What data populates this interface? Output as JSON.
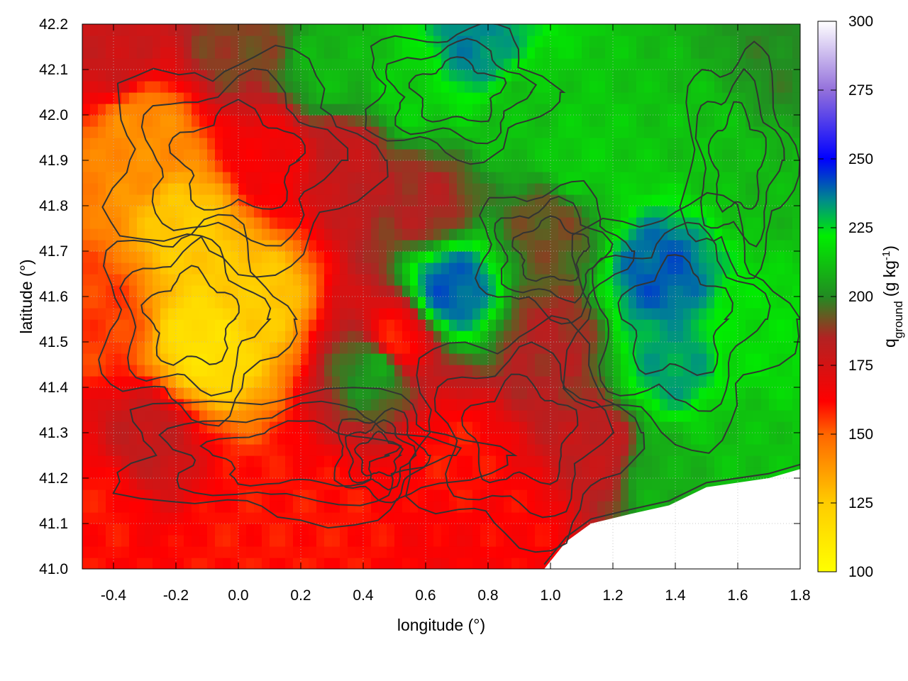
{
  "chart_data": {
    "type": "heatmap",
    "title": "",
    "xlabel": "longitude (°)",
    "ylabel": "latitude (°)",
    "colorbar_label": {
      "base": "q",
      "subscript": "ground",
      "unit_prefix": "(g kg",
      "unit_exponent": "-1",
      "unit_suffix": ")"
    },
    "xlim": [
      -0.5,
      1.8
    ],
    "ylim": [
      41.0,
      42.2
    ],
    "x_ticks": [
      "-0.4",
      "-0.2",
      "0.0",
      "0.2",
      "0.4",
      "0.6",
      "0.8",
      "1.0",
      "1.2",
      "1.4",
      "1.6",
      "1.8"
    ],
    "y_ticks": [
      "41.0",
      "41.1",
      "41.2",
      "41.3",
      "41.4",
      "41.5",
      "41.6",
      "41.7",
      "41.8",
      "41.9",
      "42.0",
      "42.1",
      "42.2"
    ],
    "colorbar_range": [
      100,
      300
    ],
    "colorbar_ticks": [
      "100",
      "125",
      "150",
      "175",
      "200",
      "225",
      "250",
      "275",
      "300"
    ],
    "colormap": [
      {
        "value": 100,
        "color": "#ffff00"
      },
      {
        "value": 125,
        "color": "#ffcc00"
      },
      {
        "value": 150,
        "color": "#ff6600"
      },
      {
        "value": 162,
        "color": "#ff0000"
      },
      {
        "value": 185,
        "color": "#b22222"
      },
      {
        "value": 200,
        "color": "#228b22"
      },
      {
        "value": 222,
        "color": "#00ee00"
      },
      {
        "value": 235,
        "color": "#008b8b"
      },
      {
        "value": 250,
        "color": "#0000ff"
      },
      {
        "value": 275,
        "color": "#9370db"
      },
      {
        "value": 300,
        "color": "#ffffff"
      }
    ],
    "grid": true,
    "contours": true,
    "contour_color": "#333333",
    "missing_color": "#ffffff",
    "field_anchors": [
      {
        "lon": -0.3,
        "lat": 41.95,
        "q": 140
      },
      {
        "lon": -0.15,
        "lat": 41.75,
        "q": 125
      },
      {
        "lon": -0.1,
        "lat": 41.5,
        "q": 115
      },
      {
        "lon": 0.05,
        "lat": 41.6,
        "q": 125
      },
      {
        "lon": -0.45,
        "lat": 41.55,
        "q": 155
      },
      {
        "lon": 0.1,
        "lat": 41.9,
        "q": 165
      },
      {
        "lon": -0.45,
        "lat": 41.15,
        "q": 160
      },
      {
        "lon": 0.0,
        "lat": 41.05,
        "q": 160
      },
      {
        "lon": 0.3,
        "lat": 41.1,
        "q": 160
      },
      {
        "lon": 0.7,
        "lat": 41.25,
        "q": 160
      },
      {
        "lon": 0.9,
        "lat": 41.1,
        "q": 162
      },
      {
        "lon": 0.5,
        "lat": 41.5,
        "q": 158
      },
      {
        "lon": -0.4,
        "lat": 42.15,
        "q": 178
      },
      {
        "lon": 0.0,
        "lat": 42.15,
        "q": 190
      },
      {
        "lon": 0.35,
        "lat": 41.9,
        "q": 180
      },
      {
        "lon": 0.6,
        "lat": 41.8,
        "q": 185
      },
      {
        "lon": 1.0,
        "lat": 41.75,
        "q": 192
      },
      {
        "lon": 1.0,
        "lat": 41.5,
        "q": 185
      },
      {
        "lon": 1.15,
        "lat": 41.25,
        "q": 180
      },
      {
        "lon": 0.55,
        "lat": 42.05,
        "q": 215
      },
      {
        "lon": 0.3,
        "lat": 42.1,
        "q": 210
      },
      {
        "lon": 0.9,
        "lat": 42.0,
        "q": 212
      },
      {
        "lon": 0.75,
        "lat": 42.15,
        "q": 235
      },
      {
        "lon": 1.1,
        "lat": 41.9,
        "q": 215
      },
      {
        "lon": 1.5,
        "lat": 41.95,
        "q": 212
      },
      {
        "lon": 1.7,
        "lat": 41.85,
        "q": 210
      },
      {
        "lon": 1.35,
        "lat": 41.65,
        "q": 240
      },
      {
        "lon": 1.4,
        "lat": 41.45,
        "q": 232
      },
      {
        "lon": 1.65,
        "lat": 41.5,
        "q": 218
      },
      {
        "lon": 1.6,
        "lat": 41.3,
        "q": 212
      },
      {
        "lon": 1.35,
        "lat": 41.2,
        "q": 208
      },
      {
        "lon": 0.68,
        "lat": 41.62,
        "q": 240
      },
      {
        "lon": 0.45,
        "lat": 41.45,
        "q": 205
      },
      {
        "lon": 1.75,
        "lat": 42.1,
        "q": 200
      },
      {
        "lon": -0.3,
        "lat": 41.28,
        "q": 180
      }
    ]
  }
}
